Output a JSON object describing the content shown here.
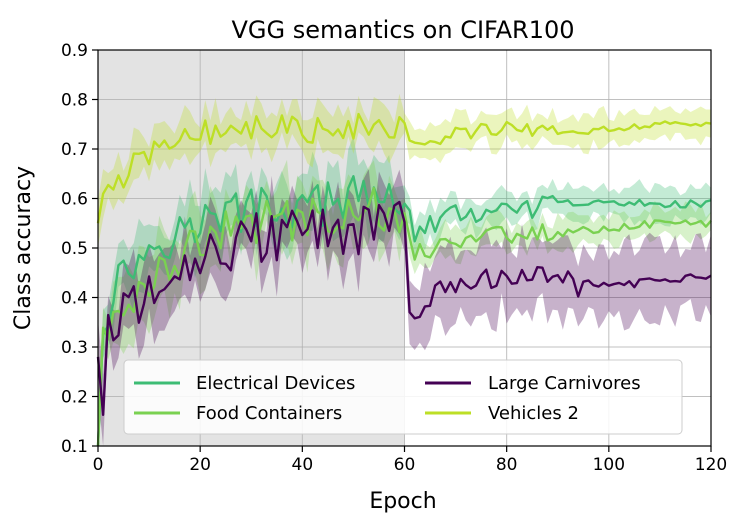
{
  "chart_data": {
    "type": "line",
    "title": "VGG semantics on CIFAR100",
    "xlabel": "Epoch",
    "ylabel": "Class accuracy",
    "xlim": [
      0,
      120
    ],
    "ylim": [
      0.1,
      0.9
    ],
    "xticks": [
      0,
      20,
      40,
      60,
      80,
      100,
      120
    ],
    "yticks": [
      0.1,
      0.2,
      0.3,
      0.4,
      0.5,
      0.6,
      0.7,
      0.8,
      0.9
    ],
    "grid": true,
    "shaded_region": {
      "x_start": 0,
      "x_end": 60,
      "color": "#e3e3e3"
    },
    "legend_position": "lower-center",
    "series": [
      {
        "name": "Electrical Devices",
        "color": "#3dbc74",
        "keypoints": [
          [
            0,
            0.1
          ],
          [
            1,
            0.35
          ],
          [
            3,
            0.42
          ],
          [
            6,
            0.46
          ],
          [
            10,
            0.5
          ],
          [
            15,
            0.53
          ],
          [
            20,
            0.55
          ],
          [
            30,
            0.58
          ],
          [
            40,
            0.58
          ],
          [
            50,
            0.6
          ],
          [
            58,
            0.61
          ],
          [
            60,
            0.59
          ],
          [
            62,
            0.53
          ],
          [
            66,
            0.55
          ],
          [
            70,
            0.57
          ],
          [
            80,
            0.57
          ],
          [
            90,
            0.59
          ],
          [
            100,
            0.59
          ],
          [
            110,
            0.59
          ],
          [
            120,
            0.59
          ]
        ],
        "band_width": [
          0.06,
          0.03
        ]
      },
      {
        "name": "Food Containers",
        "color": "#7ad151",
        "keypoints": [
          [
            0,
            0.1
          ],
          [
            1,
            0.3
          ],
          [
            3,
            0.36
          ],
          [
            6,
            0.4
          ],
          [
            10,
            0.44
          ],
          [
            15,
            0.48
          ],
          [
            20,
            0.51
          ],
          [
            30,
            0.55
          ],
          [
            40,
            0.56
          ],
          [
            50,
            0.58
          ],
          [
            58,
            0.58
          ],
          [
            60,
            0.57
          ],
          [
            62,
            0.49
          ],
          [
            66,
            0.5
          ],
          [
            70,
            0.52
          ],
          [
            80,
            0.53
          ],
          [
            90,
            0.53
          ],
          [
            100,
            0.54
          ],
          [
            110,
            0.55
          ],
          [
            120,
            0.55
          ]
        ],
        "band_width": [
          0.06,
          0.03
        ]
      },
      {
        "name": "Large Carnivores",
        "color": "#440154",
        "keypoints": [
          [
            0,
            0.28
          ],
          [
            1,
            0.15
          ],
          [
            2,
            0.35
          ],
          [
            4,
            0.36
          ],
          [
            6,
            0.42
          ],
          [
            8,
            0.33
          ],
          [
            10,
            0.43
          ],
          [
            14,
            0.46
          ],
          [
            20,
            0.48
          ],
          [
            30,
            0.52
          ],
          [
            40,
            0.53
          ],
          [
            50,
            0.53
          ],
          [
            58,
            0.56
          ],
          [
            60,
            0.55
          ],
          [
            61,
            0.36
          ],
          [
            64,
            0.4
          ],
          [
            70,
            0.41
          ],
          [
            78,
            0.45
          ],
          [
            82,
            0.43
          ],
          [
            90,
            0.44
          ],
          [
            100,
            0.42
          ],
          [
            110,
            0.44
          ],
          [
            120,
            0.44
          ]
        ],
        "band_width": [
          0.06,
          0.07
        ]
      },
      {
        "name": "Vehicles 2",
        "color": "#bddf26",
        "keypoints": [
          [
            0,
            0.55
          ],
          [
            1,
            0.62
          ],
          [
            2,
            0.6
          ],
          [
            4,
            0.63
          ],
          [
            6,
            0.66
          ],
          [
            10,
            0.69
          ],
          [
            15,
            0.72
          ],
          [
            20,
            0.74
          ],
          [
            30,
            0.74
          ],
          [
            40,
            0.74
          ],
          [
            50,
            0.75
          ],
          [
            58,
            0.75
          ],
          [
            60,
            0.75
          ],
          [
            62,
            0.72
          ],
          [
            70,
            0.73
          ],
          [
            80,
            0.74
          ],
          [
            90,
            0.73
          ],
          [
            100,
            0.74
          ],
          [
            110,
            0.75
          ],
          [
            120,
            0.75
          ]
        ],
        "band_width": [
          0.04,
          0.03
        ]
      }
    ]
  }
}
